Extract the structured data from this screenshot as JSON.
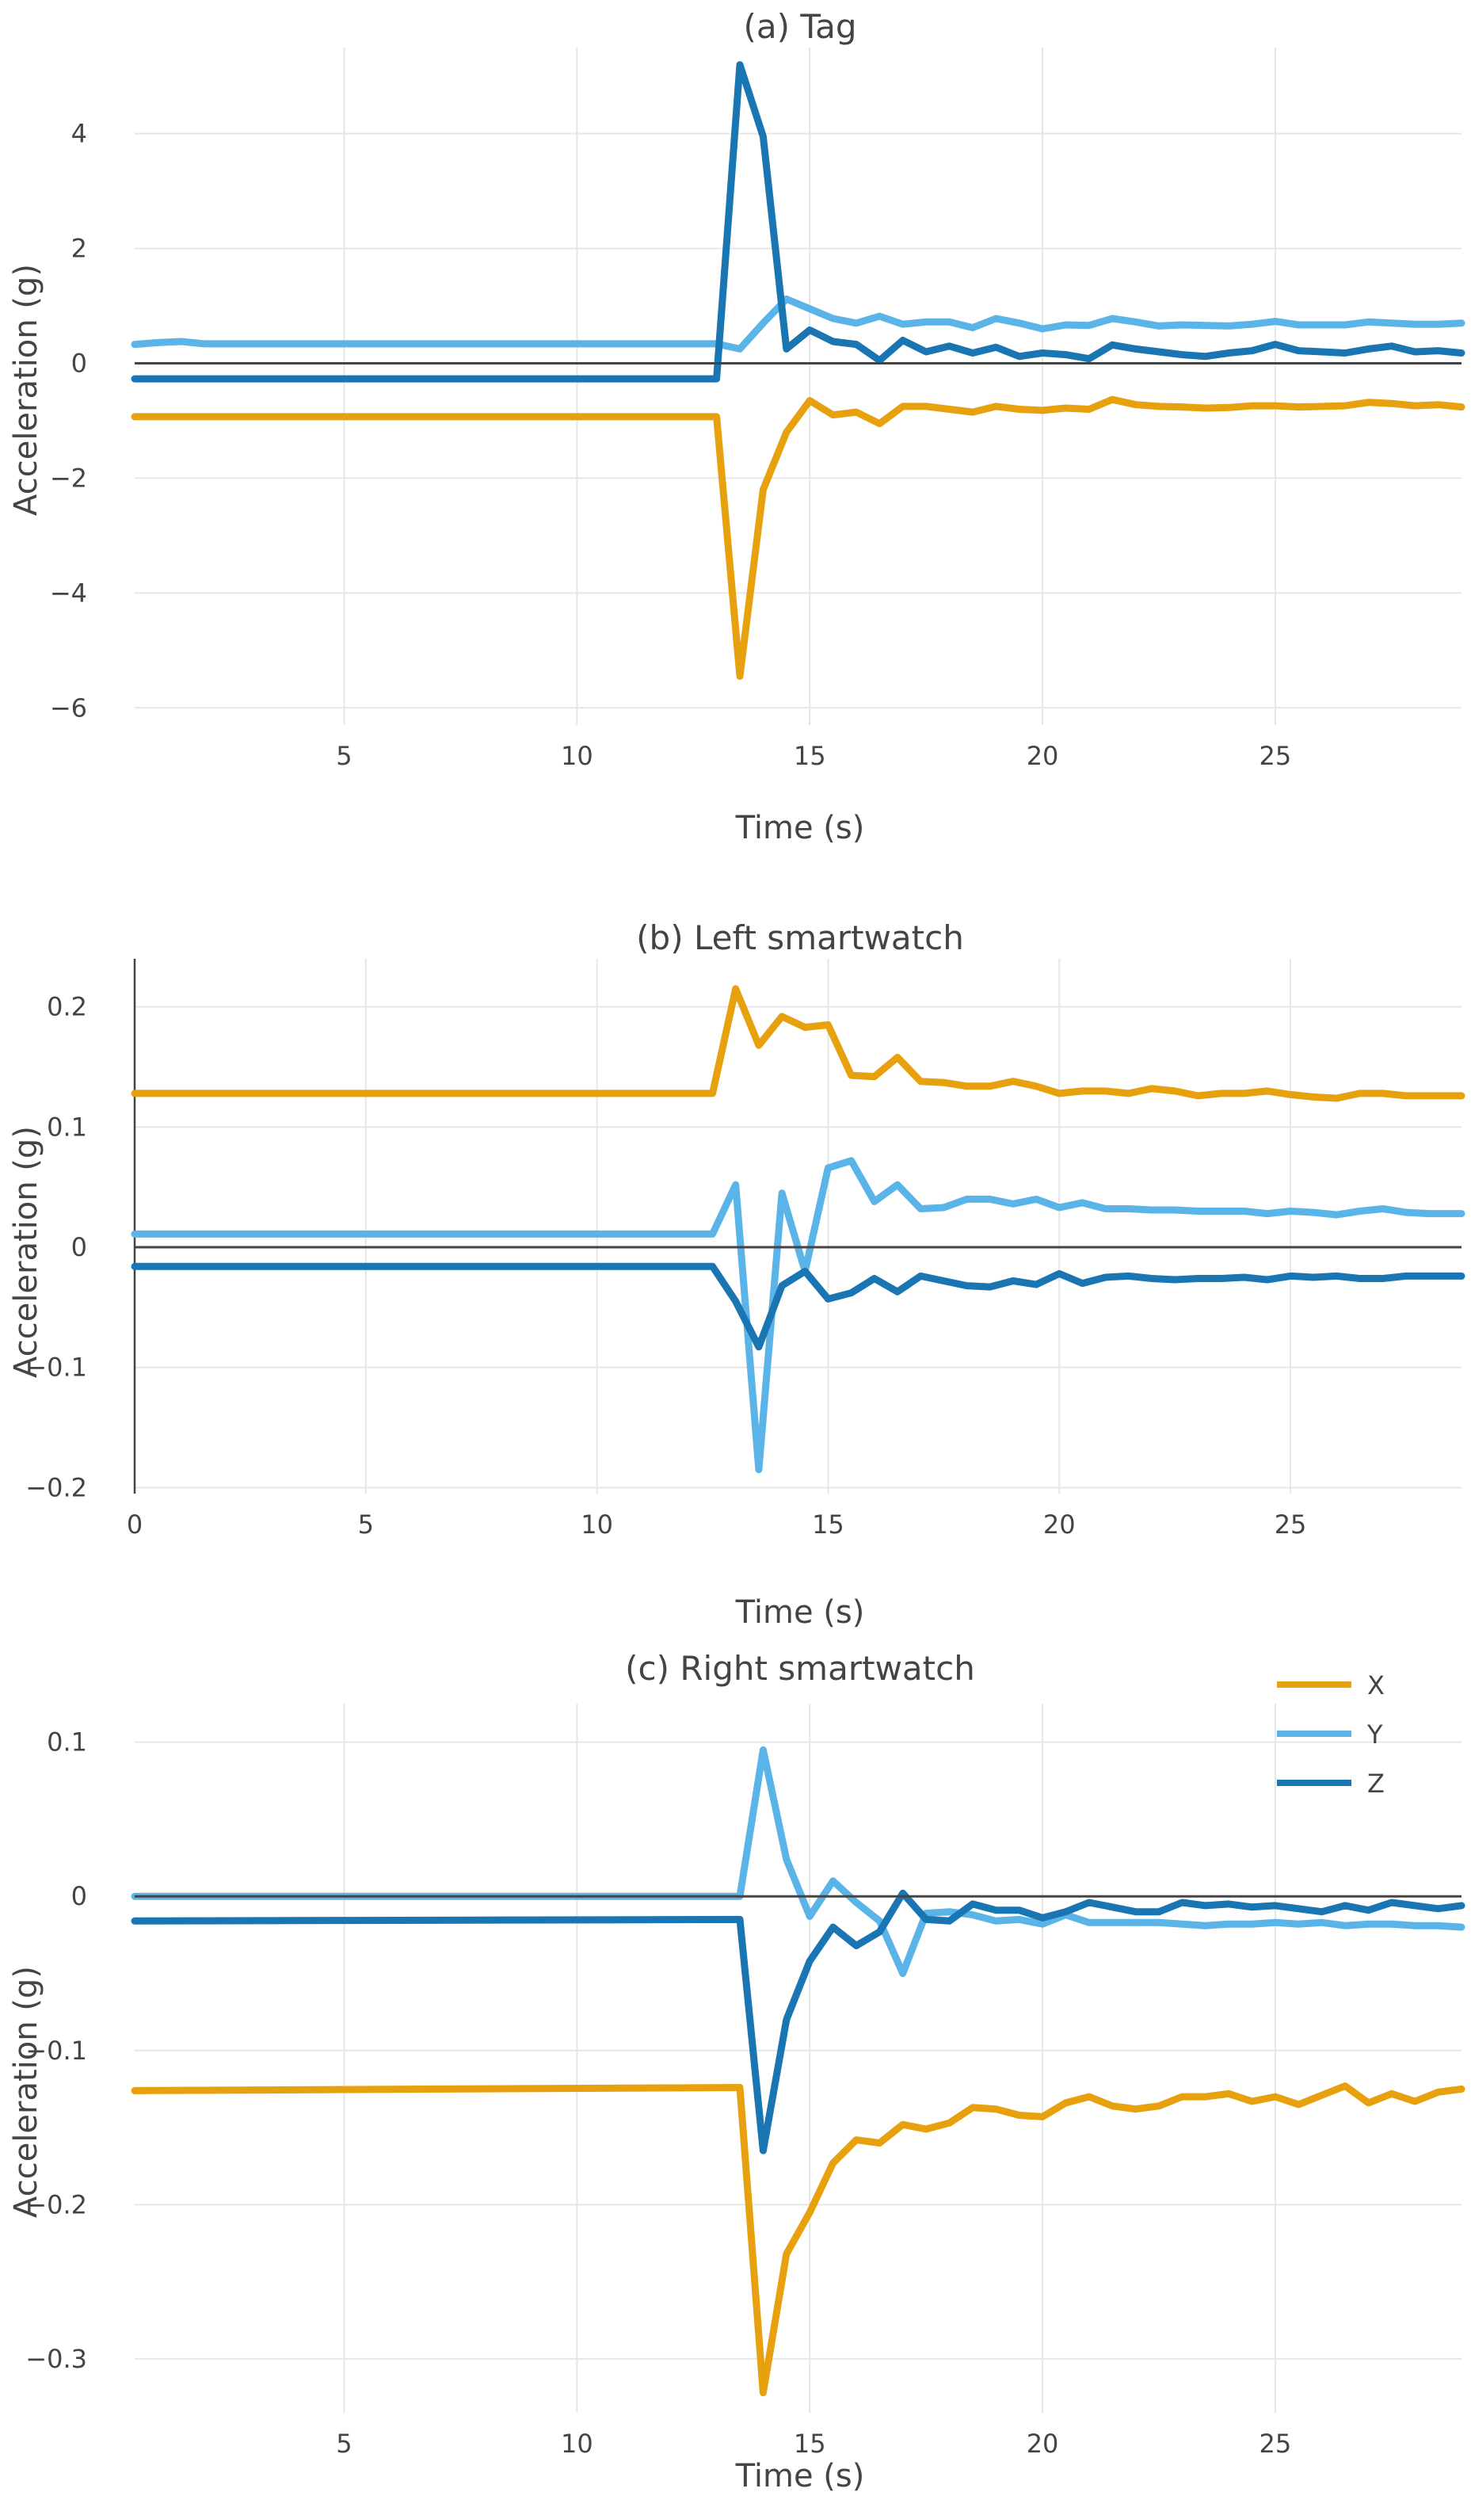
{
  "colors": {
    "X": "#E8A10E",
    "Y": "#5BB4E8",
    "Z": "#1A75B3",
    "grid": "#e6e6e6",
    "zero": "#444444"
  },
  "legend": {
    "position": "top-right",
    "entries": [
      {
        "name": "X",
        "color": "#E8A10E"
      },
      {
        "name": "Y",
        "color": "#5BB4E8"
      },
      {
        "name": "Z",
        "color": "#1A75B3"
      }
    ]
  },
  "chart_data": [
    {
      "type": "line",
      "title": "(a) Tag",
      "xlabel": "Time (s)",
      "ylabel": "Acceleration (g)",
      "xlim": [
        0.5,
        29
      ],
      "ylim": [
        -6.3,
        5.5
      ],
      "xticks": [
        5,
        10,
        15,
        20,
        25
      ],
      "xtick_labels": [
        "5",
        "10",
        "15",
        "20",
        "25"
      ],
      "yticks": [
        4,
        2,
        0,
        -2,
        -4,
        -6
      ],
      "ytick_labels": [
        "4",
        "2",
        "0",
        "−2",
        "−4",
        "−6"
      ],
      "grid": true,
      "series": [
        {
          "name": "X",
          "x": [
            0.5,
            13,
            13.5,
            14,
            14.5,
            15,
            15.5,
            16,
            16.5,
            17,
            17.5,
            18,
            18.5,
            19,
            19.5,
            20,
            20.5,
            21,
            21.5,
            22,
            22.5,
            23,
            23.5,
            24,
            24.5,
            25,
            25.5,
            26,
            26.5,
            27,
            27.5,
            28,
            28.5,
            29
          ],
          "y": [
            -0.93,
            -0.93,
            -5.45,
            -2.2,
            -1.2,
            -0.65,
            -0.9,
            -0.85,
            -1.05,
            -0.75,
            -0.75,
            -0.8,
            -0.85,
            -0.75,
            -0.8,
            -0.82,
            -0.78,
            -0.8,
            -0.63,
            -0.72,
            -0.75,
            -0.76,
            -0.78,
            -0.77,
            -0.74,
            -0.74,
            -0.76,
            -0.75,
            -0.74,
            -0.68,
            -0.7,
            -0.74,
            -0.72,
            -0.76
          ]
        },
        {
          "name": "Y",
          "x": [
            0.5,
            1,
            1.5,
            2,
            13,
            13.5,
            14,
            14.5,
            15,
            15.5,
            16,
            16.5,
            17,
            17.5,
            18,
            18.5,
            19,
            19.5,
            20,
            20.5,
            21,
            21.5,
            22,
            22.5,
            23,
            23.5,
            24,
            24.5,
            25,
            25.5,
            26,
            26.5,
            27,
            27.5,
            28,
            28.5,
            29
          ],
          "y": [
            0.33,
            0.36,
            0.38,
            0.34,
            0.34,
            0.25,
            0.7,
            1.12,
            0.95,
            0.78,
            0.7,
            0.82,
            0.68,
            0.72,
            0.72,
            0.62,
            0.78,
            0.7,
            0.6,
            0.67,
            0.66,
            0.78,
            0.72,
            0.65,
            0.67,
            0.66,
            0.65,
            0.68,
            0.73,
            0.67,
            0.67,
            0.67,
            0.72,
            0.7,
            0.68,
            0.68,
            0.7
          ]
        },
        {
          "name": "Z",
          "x": [
            0.5,
            13,
            13.5,
            14,
            14.5,
            15,
            15.5,
            16,
            16.5,
            17,
            17.5,
            18,
            18.5,
            19,
            19.5,
            20,
            20.5,
            21,
            21.5,
            22,
            22.5,
            23,
            23.5,
            24,
            24.5,
            25,
            25.5,
            26,
            26.5,
            27,
            27.5,
            28,
            28.5,
            29
          ],
          "y": [
            -0.27,
            -0.27,
            5.2,
            3.95,
            0.25,
            0.58,
            0.38,
            0.33,
            0.05,
            0.4,
            0.2,
            0.3,
            0.18,
            0.28,
            0.12,
            0.18,
            0.15,
            0.08,
            0.32,
            0.25,
            0.2,
            0.15,
            0.12,
            0.18,
            0.22,
            0.33,
            0.22,
            0.2,
            0.18,
            0.25,
            0.3,
            0.2,
            0.22,
            0.18
          ]
        }
      ]
    },
    {
      "type": "line",
      "title": "(b) Left smartwatch",
      "xlabel": "Time (s)",
      "ylabel": "Acceleration (g)",
      "xlim": [
        0,
        28.7
      ],
      "ylim": [
        -0.205,
        0.24
      ],
      "xticks": [
        0,
        5,
        10,
        15,
        20,
        25
      ],
      "xtick_labels": [
        "0",
        "5",
        "10",
        "15",
        "20",
        "25"
      ],
      "yticks": [
        0.2,
        0.1,
        0,
        -0.1,
        -0.2
      ],
      "ytick_labels": [
        "0.2",
        "0.1",
        "0",
        "−0.1",
        "−0.2"
      ],
      "grid": true,
      "series": [
        {
          "name": "X",
          "x": [
            0,
            12.5,
            13,
            13.5,
            14,
            14.5,
            15,
            15.5,
            16,
            16.5,
            17,
            17.5,
            18,
            18.5,
            19,
            19.5,
            20,
            20.5,
            21,
            21.5,
            22,
            22.5,
            23,
            23.5,
            24,
            24.5,
            25,
            25.5,
            26,
            26.5,
            27,
            27.5,
            28,
            28.7
          ],
          "y": [
            0.128,
            0.128,
            0.215,
            0.168,
            0.192,
            0.183,
            0.185,
            0.143,
            0.142,
            0.158,
            0.138,
            0.137,
            0.134,
            0.134,
            0.138,
            0.134,
            0.128,
            0.13,
            0.13,
            0.128,
            0.132,
            0.13,
            0.126,
            0.128,
            0.128,
            0.13,
            0.127,
            0.125,
            0.124,
            0.128,
            0.128,
            0.126,
            0.126,
            0.126
          ]
        },
        {
          "name": "Y",
          "x": [
            0,
            12.5,
            13,
            13.5,
            14,
            14.5,
            15,
            15.5,
            16,
            16.5,
            17,
            17.5,
            18,
            18.5,
            19,
            19.5,
            20,
            20.5,
            21,
            21.5,
            22,
            22.5,
            23,
            23.5,
            24,
            24.5,
            25,
            25.5,
            26,
            26.5,
            27,
            27.5,
            28,
            28.7
          ],
          "y": [
            0.011,
            0.011,
            0.052,
            -0.185,
            0.045,
            -0.02,
            0.066,
            0.072,
            0.038,
            0.052,
            0.032,
            0.033,
            0.04,
            0.04,
            0.036,
            0.04,
            0.033,
            0.037,
            0.032,
            0.032,
            0.031,
            0.031,
            0.03,
            0.03,
            0.03,
            0.028,
            0.03,
            0.029,
            0.027,
            0.03,
            0.032,
            0.029,
            0.028,
            0.028
          ]
        },
        {
          "name": "Z",
          "x": [
            0,
            12.5,
            13,
            13.5,
            14,
            14.5,
            15,
            15.5,
            16,
            16.5,
            17,
            17.5,
            18,
            18.5,
            19,
            19.5,
            20,
            20.5,
            21,
            21.5,
            22,
            22.5,
            23,
            23.5,
            24,
            24.5,
            25,
            25.5,
            26,
            26.5,
            27,
            27.5,
            28,
            28.7
          ],
          "y": [
            -0.016,
            -0.016,
            -0.045,
            -0.083,
            -0.032,
            -0.02,
            -0.043,
            -0.038,
            -0.026,
            -0.037,
            -0.024,
            -0.028,
            -0.032,
            -0.033,
            -0.028,
            -0.031,
            -0.022,
            -0.03,
            -0.025,
            -0.024,
            -0.026,
            -0.027,
            -0.026,
            -0.026,
            -0.025,
            -0.027,
            -0.024,
            -0.025,
            -0.024,
            -0.026,
            -0.026,
            -0.024,
            -0.024,
            -0.024
          ]
        }
      ]
    },
    {
      "type": "line",
      "title": "(c) Right smartwatch",
      "xlabel": "Time (s)",
      "ylabel": "Acceleration (g)",
      "xlim": [
        0.5,
        29
      ],
      "ylim": [
        -0.335,
        0.125
      ],
      "xticks": [
        5,
        10,
        15,
        20,
        25
      ],
      "xtick_labels": [
        "5",
        "10",
        "15",
        "20",
        "25"
      ],
      "yticks": [
        0.1,
        0,
        -0.1,
        -0.2,
        -0.3
      ],
      "ytick_labels": [
        "0.1",
        "0",
        "−0.1",
        "−0.2",
        "−0.3"
      ],
      "grid": true,
      "series": [
        {
          "name": "X",
          "x": [
            0.5,
            13.5,
            14,
            14.5,
            15,
            15.5,
            16,
            16.5,
            17,
            17.5,
            18,
            18.5,
            19,
            19.5,
            20,
            20.5,
            21,
            21.5,
            22,
            22.5,
            23,
            23.5,
            24,
            24.5,
            25,
            25.5,
            26,
            26.5,
            27,
            27.5,
            28,
            28.5,
            29
          ],
          "y": [
            -0.126,
            -0.124,
            -0.322,
            -0.232,
            -0.205,
            -0.173,
            -0.158,
            -0.16,
            -0.148,
            -0.151,
            -0.147,
            -0.137,
            -0.138,
            -0.142,
            -0.143,
            -0.134,
            -0.13,
            -0.136,
            -0.138,
            -0.136,
            -0.13,
            -0.13,
            -0.128,
            -0.133,
            -0.13,
            -0.135,
            -0.129,
            -0.123,
            -0.134,
            -0.128,
            -0.133,
            -0.127,
            -0.125
          ]
        },
        {
          "name": "Y",
          "x": [
            0.5,
            13.5,
            14,
            14.5,
            15,
            15.5,
            16,
            16.5,
            17,
            17.5,
            18,
            18.5,
            19,
            19.5,
            20,
            20.5,
            21,
            21.5,
            22,
            22.5,
            23,
            23.5,
            24,
            24.5,
            25,
            25.5,
            26,
            26.5,
            27,
            27.5,
            28,
            28.5,
            29
          ],
          "y": [
            0.0,
            0.0,
            0.095,
            0.024,
            -0.013,
            0.01,
            -0.004,
            -0.016,
            -0.05,
            -0.011,
            -0.01,
            -0.012,
            -0.016,
            -0.015,
            -0.018,
            -0.012,
            -0.017,
            -0.017,
            -0.017,
            -0.017,
            -0.018,
            -0.019,
            -0.018,
            -0.018,
            -0.017,
            -0.018,
            -0.017,
            -0.019,
            -0.018,
            -0.018,
            -0.019,
            -0.019,
            -0.02
          ]
        },
        {
          "name": "Z",
          "x": [
            0.5,
            13.5,
            14,
            14.5,
            15,
            15.5,
            16,
            16.5,
            17,
            17.5,
            18,
            18.5,
            19,
            19.5,
            20,
            20.5,
            21,
            21.5,
            22,
            22.5,
            23,
            23.5,
            24,
            24.5,
            25,
            25.5,
            26,
            26.5,
            27,
            27.5,
            28,
            28.5,
            29
          ],
          "y": [
            -0.016,
            -0.015,
            -0.165,
            -0.08,
            -0.042,
            -0.02,
            -0.032,
            -0.023,
            0.002,
            -0.015,
            -0.016,
            -0.005,
            -0.009,
            -0.009,
            -0.014,
            -0.01,
            -0.004,
            -0.007,
            -0.01,
            -0.01,
            -0.004,
            -0.006,
            -0.005,
            -0.007,
            -0.006,
            -0.008,
            -0.01,
            -0.006,
            -0.009,
            -0.004,
            -0.006,
            -0.008,
            -0.006
          ]
        }
      ]
    }
  ]
}
